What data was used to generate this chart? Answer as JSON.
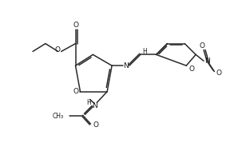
{
  "background_color": "#ffffff",
  "line_color": "#2a2a2a",
  "line_width": 1.1,
  "figsize": [
    3.03,
    1.84
  ],
  "dpi": 100,
  "xlim": [
    0,
    303
  ],
  "ylim": [
    0,
    184
  ]
}
